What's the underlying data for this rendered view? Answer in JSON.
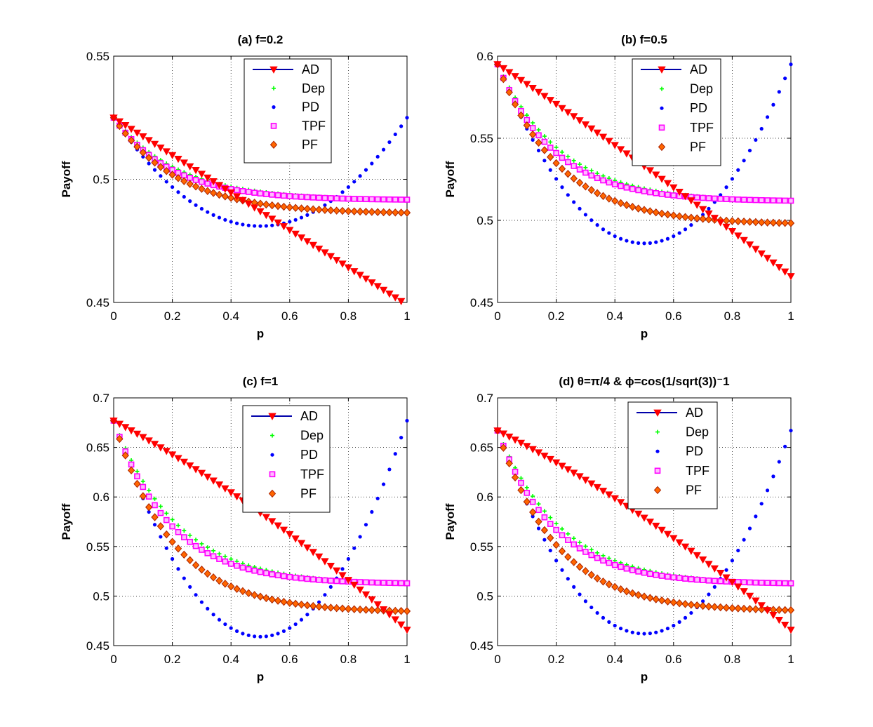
{
  "chart_data": [
    {
      "type": "line",
      "title": "(a) f=0.2",
      "xlabel": "p",
      "ylabel": "Payoff",
      "xlim": [
        0,
        1
      ],
      "ylim": [
        0.45,
        0.55
      ],
      "xticks": [
        0,
        0.2,
        0.4,
        0.6,
        0.8,
        1
      ],
      "xtick_labels": [
        "0",
        "0.2",
        "0.4",
        "0.6",
        "0.8",
        "1"
      ],
      "yticks": [
        0.45,
        0.5,
        0.55
      ],
      "ytick_labels": [
        "0.45",
        "0.5",
        "0.55"
      ],
      "grid": true,
      "legend_position": "top-center",
      "series": [
        {
          "name": "AD",
          "color": "#ff0000",
          "marker": "triangle-down",
          "values": {
            "start": 0.525,
            "end": 0.449,
            "curvature": 0.0
          }
        },
        {
          "name": "Dep",
          "color": "#00ff00",
          "marker": "plus",
          "values": {
            "start": 0.525,
            "plateau": 0.4915,
            "decay": 4.5
          }
        },
        {
          "name": "PD",
          "color": "#0000ff",
          "marker": "dot",
          "values": {
            "start": 0.525,
            "minimum": 0.481,
            "at": 0.5
          }
        },
        {
          "name": "TPF",
          "color": "#ff00ff",
          "marker": "square",
          "values": {
            "start": 0.525,
            "plateau": 0.4915,
            "decay": 5.0
          }
        },
        {
          "name": "PF",
          "color": "#cc3300",
          "marker": "diamond",
          "values": {
            "start": 0.525,
            "plateau": 0.486,
            "decay": 4.5
          }
        }
      ]
    },
    {
      "type": "line",
      "title": "(b) f=0.5",
      "xlabel": "p",
      "ylabel": "Payoff",
      "xlim": [
        0,
        1
      ],
      "ylim": [
        0.45,
        0.6
      ],
      "xticks": [
        0,
        0.2,
        0.4,
        0.6,
        0.8,
        1
      ],
      "xtick_labels": [
        "0",
        "0.2",
        "0.4",
        "0.6",
        "0.8",
        "1"
      ],
      "yticks": [
        0.45,
        0.5,
        0.55,
        0.6
      ],
      "ytick_labels": [
        "0.45",
        "0.5",
        "0.55",
        "0.6"
      ],
      "grid": true,
      "legend_position": "top-right",
      "series": [
        {
          "name": "AD",
          "color": "#ff0000",
          "marker": "triangle-down",
          "values": {
            "start": 0.595,
            "end": 0.466,
            "curvature": 0.01
          }
        },
        {
          "name": "Dep",
          "color": "#00ff00",
          "marker": "plus",
          "values": {
            "start": 0.595,
            "plateau": 0.511,
            "decay": 4.6
          }
        },
        {
          "name": "PD",
          "color": "#0000ff",
          "marker": "dot",
          "values": {
            "start": 0.595,
            "minimum": 0.486,
            "at": 0.5
          }
        },
        {
          "name": "TPF",
          "color": "#ff00ff",
          "marker": "square",
          "values": {
            "start": 0.595,
            "plateau": 0.5115,
            "decay": 5.2
          }
        },
        {
          "name": "PF",
          "color": "#cc3300",
          "marker": "diamond",
          "values": {
            "start": 0.595,
            "plateau": 0.4975,
            "decay": 4.8
          }
        }
      ]
    },
    {
      "type": "line",
      "title": "(c) f=1",
      "xlabel": "p",
      "ylabel": "Payoff",
      "xlim": [
        0,
        1
      ],
      "ylim": [
        0.45,
        0.7
      ],
      "xticks": [
        0,
        0.2,
        0.4,
        0.6,
        0.8,
        1
      ],
      "xtick_labels": [
        "0",
        "0.2",
        "0.4",
        "0.6",
        "0.8",
        "1"
      ],
      "yticks": [
        0.45,
        0.5,
        0.55,
        0.6,
        0.65,
        0.7
      ],
      "ytick_labels": [
        "0.45",
        "0.5",
        "0.55",
        "0.6",
        "0.65",
        "0.7"
      ],
      "grid": true,
      "legend_position": "top-center",
      "series": [
        {
          "name": "AD",
          "color": "#ff0000",
          "marker": "triangle-down",
          "values": {
            "start": 0.677,
            "end": 0.466,
            "curvature": 0.05
          }
        },
        {
          "name": "Dep",
          "color": "#00ff00",
          "marker": "plus",
          "values": {
            "start": 0.677,
            "plateau": 0.511,
            "decay": 4.6
          }
        },
        {
          "name": "PD",
          "color": "#0000ff",
          "marker": "dot",
          "values": {
            "start": 0.677,
            "minimum": 0.459,
            "at": 0.5
          }
        },
        {
          "name": "TPF",
          "color": "#ff00ff",
          "marker": "square",
          "values": {
            "start": 0.677,
            "plateau": 0.512,
            "decay": 5.2
          }
        },
        {
          "name": "PF",
          "color": "#cc3300",
          "marker": "diamond",
          "values": {
            "start": 0.677,
            "plateau": 0.4835,
            "decay": 5.0
          }
        }
      ]
    },
    {
      "type": "line",
      "title": "(d) θ=π/4 & ϕ=cos(1/sqrt(3))⁻1",
      "xlabel": "p",
      "ylabel": "Payoff",
      "xlim": [
        0,
        1
      ],
      "ylim": [
        0.45,
        0.7
      ],
      "xticks": [
        0,
        0.2,
        0.4,
        0.6,
        0.8,
        1
      ],
      "xtick_labels": [
        "0",
        "0.2",
        "0.4",
        "0.6",
        "0.8",
        "1"
      ],
      "yticks": [
        0.45,
        0.5,
        0.55,
        0.6,
        0.65,
        0.7
      ],
      "ytick_labels": [
        "0.45",
        "0.5",
        "0.55",
        "0.6",
        "0.65",
        "0.7"
      ],
      "grid": true,
      "legend_position": "top-center",
      "series": [
        {
          "name": "AD",
          "color": "#ff0000",
          "marker": "triangle-down",
          "values": {
            "start": 0.667,
            "end": 0.466,
            "curvature": 0.05
          }
        },
        {
          "name": "Dep",
          "color": "#00ff00",
          "marker": "plus",
          "values": {
            "start": 0.667,
            "plateau": 0.511,
            "decay": 4.6
          }
        },
        {
          "name": "PD",
          "color": "#0000ff",
          "marker": "dot",
          "values": {
            "start": 0.667,
            "minimum": 0.462,
            "at": 0.5
          }
        },
        {
          "name": "TPF",
          "color": "#ff00ff",
          "marker": "square",
          "values": {
            "start": 0.667,
            "plateau": 0.512,
            "decay": 5.2
          }
        },
        {
          "name": "PF",
          "color": "#cc3300",
          "marker": "diamond",
          "values": {
            "start": 0.667,
            "plateau": 0.4845,
            "decay": 5.0
          }
        }
      ]
    }
  ]
}
